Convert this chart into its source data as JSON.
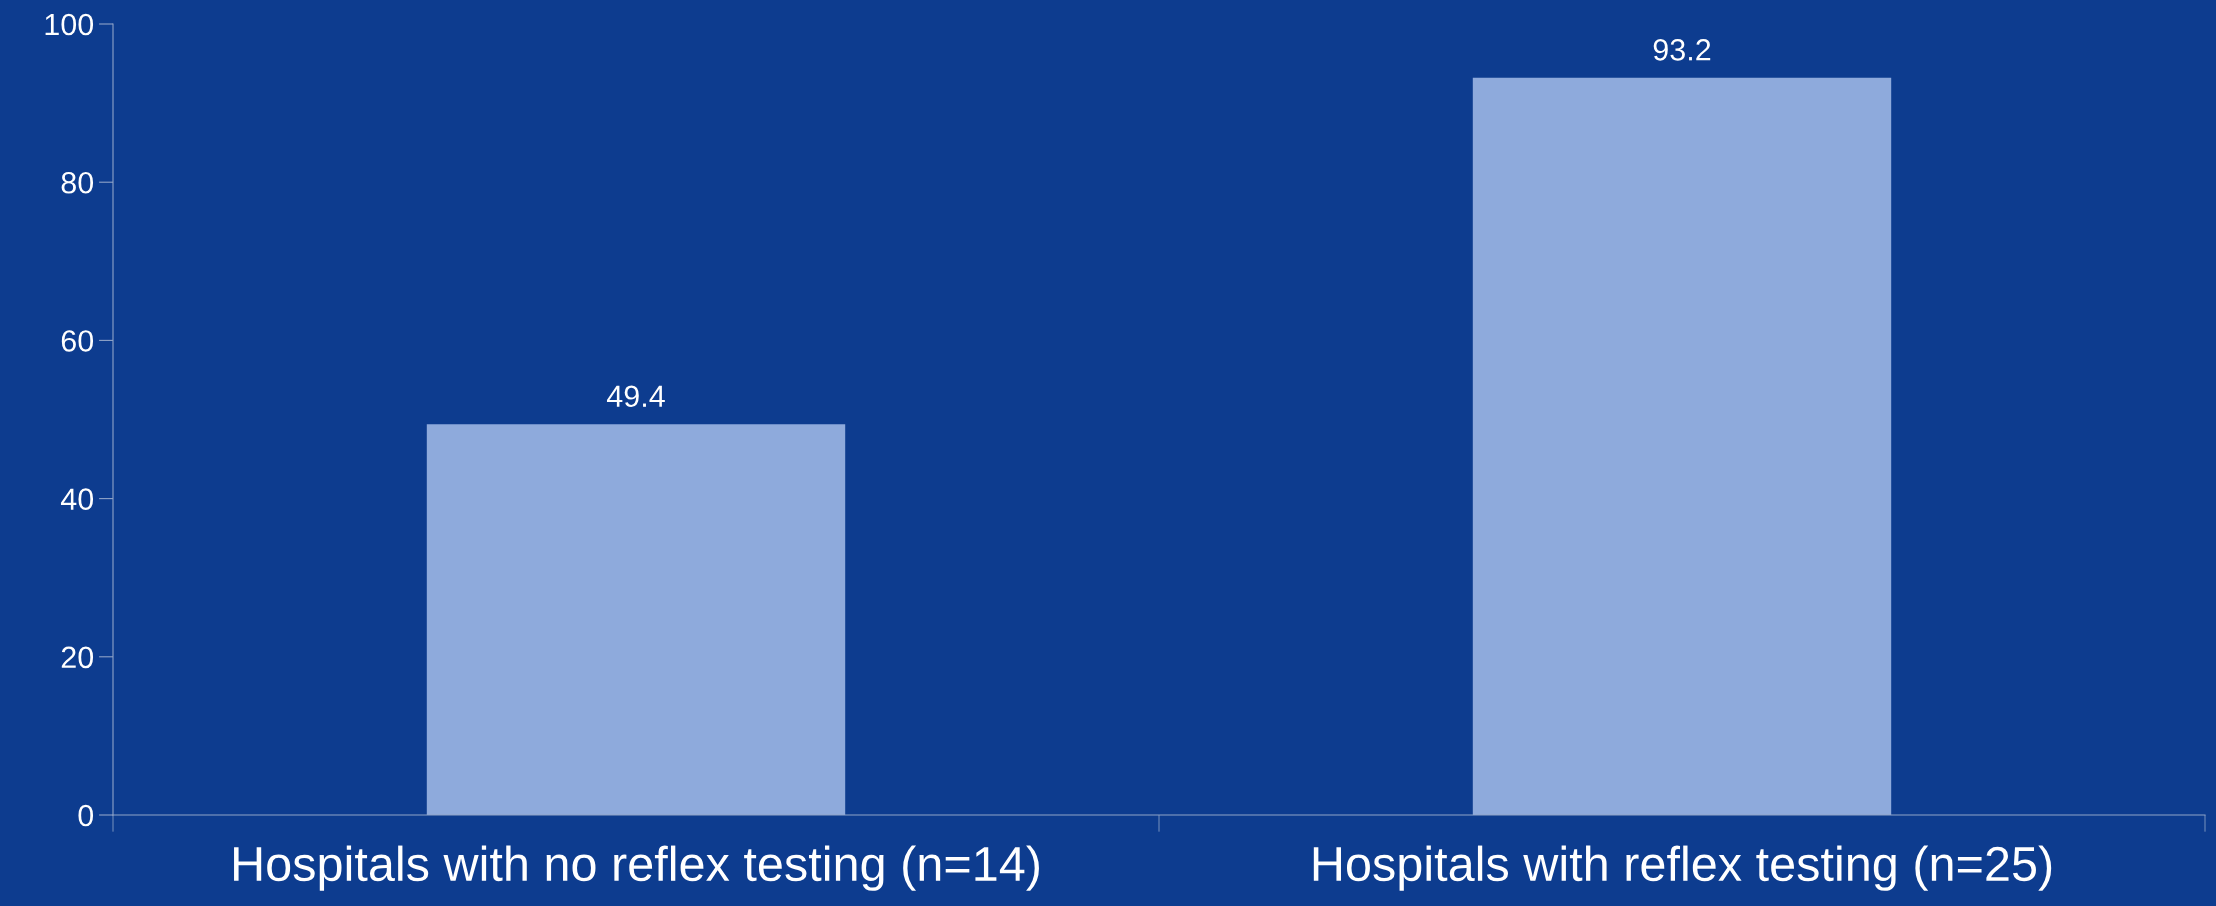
{
  "chart_data": {
    "type": "bar",
    "categories": [
      "Hospitals with no reflex testing (n=14)",
      "Hospitals with reflex testing (n=25)"
    ],
    "values": [
      49.4,
      93.2
    ],
    "color": "#8eaadc",
    "ylim": [
      0,
      100
    ],
    "yticks": [
      0,
      20,
      40,
      60,
      80,
      100
    ],
    "data_labels": true,
    "grid": false,
    "legend": false
  }
}
